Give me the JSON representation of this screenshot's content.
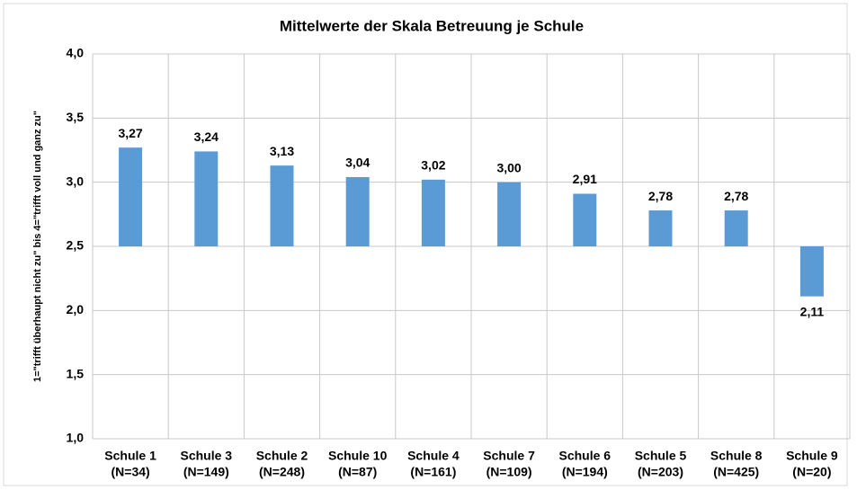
{
  "chart_data": {
    "type": "bar",
    "title": "Mittelwerte der Skala Betreuung je Schule",
    "y_label": "1=\"trifft überhaupt nicht zu\" bis 4=\"trifft voll und ganz zu\"",
    "categories": [
      [
        "Schule 1",
        "(N=34)"
      ],
      [
        "Schule 3",
        "(N=149)"
      ],
      [
        "Schule 2",
        "(N=248)"
      ],
      [
        "Schule 10",
        "(N=87)"
      ],
      [
        "Schule 4",
        "(N=161)"
      ],
      [
        "Schule 7",
        "(N=109)"
      ],
      [
        "Schule 6",
        "(N=194)"
      ],
      [
        "Schule 5",
        "(N=203)"
      ],
      [
        "Schule 8",
        "(N=425)"
      ],
      [
        "Schule 9",
        "(N=20)"
      ]
    ],
    "values": [
      3.27,
      3.24,
      3.13,
      3.04,
      3.02,
      3.0,
      2.91,
      2.78,
      2.78,
      2.11
    ],
    "value_labels": [
      "3,27",
      "3,24",
      "3,13",
      "3,04",
      "3,02",
      "3,00",
      "2,91",
      "2,78",
      "2,78",
      "2,11"
    ],
    "color": "#5b9bd5",
    "bar_baseline": 2.5,
    "ylim": [
      1,
      4
    ],
    "yticks": [
      {
        "value": 1,
        "label": "1,0"
      },
      {
        "value": 1.5,
        "label": "1,5"
      },
      {
        "value": 2,
        "label": "2,0"
      },
      {
        "value": 2.5,
        "label": "2,5"
      },
      {
        "value": 3,
        "label": "3,0"
      },
      {
        "value": 3.5,
        "label": "3,5"
      },
      {
        "value": 4,
        "label": "4,0"
      }
    ],
    "grid": true
  }
}
